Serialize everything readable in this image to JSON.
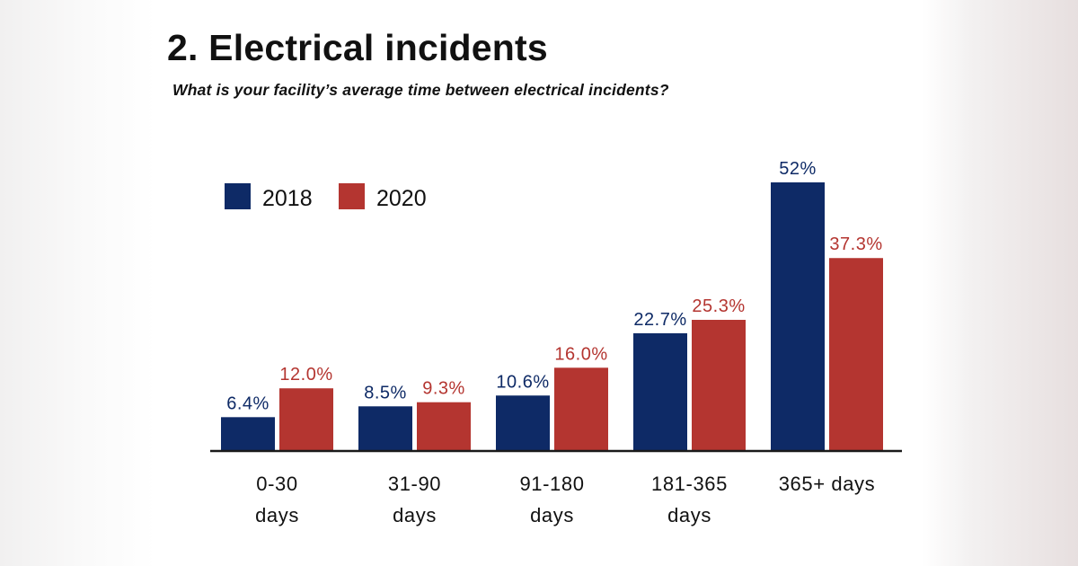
{
  "page": {
    "title": "2. Electrical incidents",
    "subtitle": "What is your facility’s average time between electrical incidents?"
  },
  "chart_data": {
    "type": "bar",
    "title": "2. Electrical incidents",
    "subtitle": "What is your facility’s average time between electrical incidents?",
    "categories": [
      [
        "0-30",
        "days"
      ],
      [
        "31-90",
        "days"
      ],
      [
        "91-180",
        "days"
      ],
      [
        "181-365",
        "days"
      ],
      [
        "365+ days"
      ]
    ],
    "series": [
      {
        "name": "2018",
        "color": "#0e2a66",
        "values": [
          6.4,
          8.5,
          10.6,
          22.7,
          52
        ],
        "labels": [
          "6.4%",
          "8.5%",
          "10.6%",
          "22.7%",
          "52%"
        ]
      },
      {
        "name": "2020",
        "color": "#b43530",
        "values": [
          12.0,
          9.3,
          16.0,
          25.3,
          37.3
        ],
        "labels": [
          "12.0%",
          "9.3%",
          "16.0%",
          "25.3%",
          "37.3%"
        ]
      }
    ],
    "xlabel": "",
    "ylabel": "",
    "ylim": [
      0,
      52
    ],
    "grid": false,
    "legend": "top-left"
  }
}
